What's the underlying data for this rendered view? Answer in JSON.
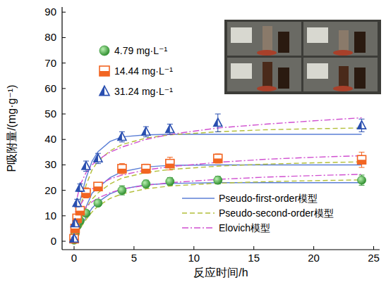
{
  "chart_data": {
    "type": "scatter",
    "x_label": "反应时间/h",
    "y_label": "P吸附量/(mg·g⁻¹)",
    "xlim": [
      -1,
      25.5
    ],
    "ylim": [
      -3.3,
      92
    ],
    "xticks": [
      0,
      5,
      10,
      15,
      20,
      25
    ],
    "yticks": [
      0,
      10,
      20,
      30,
      40,
      50,
      60,
      70,
      80,
      90
    ],
    "legend": "lower right",
    "grid": false,
    "series": [
      {
        "name": "4.79 mg·L⁻¹",
        "type": "scatter",
        "color": "#3a9a3a",
        "marker": "circle",
        "x": [
          0,
          0.083,
          0.25,
          0.5,
          1,
          2,
          4,
          6,
          8,
          12,
          24
        ],
        "values": [
          0.5,
          3,
          6,
          8,
          11,
          15,
          20,
          22.5,
          23.5,
          24,
          24
        ],
        "errors": [
          0.5,
          0.8,
          1,
          1,
          1.2,
          1.2,
          1.8,
          1.5,
          1.5,
          1.5,
          2
        ]
      },
      {
        "name": "14.44 mg·L⁻¹",
        "type": "scatter",
        "color": "#f26522",
        "marker": "square",
        "x": [
          0,
          0.083,
          0.25,
          0.5,
          1,
          2,
          4,
          6,
          8,
          12,
          24
        ],
        "values": [
          1,
          5,
          9,
          12,
          19,
          21.5,
          28.5,
          28.5,
          30.5,
          32.5,
          32
        ],
        "errors": [
          0.6,
          1,
          1.5,
          1.5,
          2,
          1.5,
          2,
          1.8,
          2.5,
          1.8,
          3
        ]
      },
      {
        "name": "31.24 mg·L⁻¹",
        "type": "scatter",
        "color": "#2a4fb0",
        "marker": "triangle",
        "x": [
          0,
          0.083,
          0.25,
          0.5,
          1,
          2,
          4,
          6,
          8,
          12,
          24
        ],
        "values": [
          1,
          7,
          15,
          21,
          29.5,
          32.5,
          41,
          43,
          44,
          46.5,
          45.5
        ],
        "errors": [
          0.6,
          1,
          1.5,
          1.5,
          2,
          2,
          2,
          2,
          2,
          3.5,
          2.5
        ]
      },
      {
        "name": "Pseudo-first-order模型",
        "type": "line",
        "color": "#5b7fd6",
        "line_style": "solid",
        "x": [
          0,
          0.25,
          0.5,
          1,
          1.5,
          2,
          3,
          4,
          6,
          8,
          12,
          16,
          20,
          24
        ],
        "values": [
          0,
          2.9,
          5.4,
          9.4,
          13,
          15.4,
          18.6,
          20.5,
          22.2,
          22.7,
          23,
          23,
          23,
          23
        ]
      },
      {
        "name": "Pseudo-first-order模型",
        "type": "line",
        "color": "#5b7fd6",
        "line_style": "solid",
        "x": [
          0,
          0.25,
          0.5,
          1,
          1.5,
          2,
          3,
          4,
          6,
          8,
          12,
          16,
          20,
          24
        ],
        "values": [
          0,
          4.2,
          7.8,
          13.5,
          18.9,
          21,
          25,
          27.3,
          29.2,
          29.8,
          30,
          30,
          30,
          30
        ]
      },
      {
        "name": "Pseudo-first-order模型",
        "type": "line",
        "color": "#5b7fd6",
        "line_style": "solid",
        "x": [
          0,
          0.25,
          0.5,
          1,
          1.5,
          2,
          3,
          4,
          6,
          8,
          12,
          16,
          20,
          24
        ],
        "values": [
          0,
          8.4,
          15.9,
          24.9,
          31.4,
          35.2,
          39.2,
          41,
          41.8,
          42,
          42,
          42,
          42,
          42
        ]
      },
      {
        "name": "Pseudo-second-order模型",
        "type": "line",
        "color": "#b3bf3a",
        "line_style": "dashed",
        "x": [
          0,
          0.25,
          0.5,
          1,
          1.5,
          2,
          3,
          4,
          6,
          8,
          12,
          16,
          20,
          24
        ],
        "values": [
          0,
          2.5,
          5,
          8.5,
          11.5,
          13.8,
          16.8,
          18.6,
          20.6,
          21.7,
          22.8,
          23.4,
          23.8,
          24.1
        ]
      },
      {
        "name": "Pseudo-second-order模型",
        "type": "line",
        "color": "#b3bf3a",
        "line_style": "dashed",
        "x": [
          0,
          0.25,
          0.5,
          1,
          1.5,
          2,
          3,
          4,
          6,
          8,
          12,
          16,
          20,
          24
        ],
        "values": [
          0,
          4,
          7.5,
          13,
          16.5,
          19,
          22.5,
          24.8,
          27,
          28.2,
          29.5,
          30.3,
          30.8,
          31.2
        ]
      },
      {
        "name": "Pseudo-second-order模型",
        "type": "line",
        "color": "#b3bf3a",
        "line_style": "dashed",
        "x": [
          0,
          0.25,
          0.5,
          1,
          1.5,
          2,
          3,
          4,
          6,
          8,
          12,
          16,
          20,
          24
        ],
        "values": [
          0,
          7,
          13,
          22,
          28,
          31.5,
          35.5,
          38,
          40.5,
          41.8,
          43,
          43.8,
          44.2,
          44.5
        ]
      },
      {
        "name": "Elovich模型",
        "type": "line",
        "color": "#d04fd0",
        "line_style": "dashdot",
        "x": [
          0.05,
          0.25,
          0.5,
          1,
          1.5,
          2,
          3,
          4,
          6,
          8,
          12,
          16,
          20,
          24
        ],
        "values": [
          3,
          7,
          10,
          13.5,
          15.5,
          17,
          19,
          20.5,
          22,
          23,
          24.3,
          25.2,
          25.8,
          26.3
        ]
      },
      {
        "name": "Elovich模型",
        "type": "line",
        "color": "#d04fd0",
        "line_style": "dashdot",
        "x": [
          0.05,
          0.25,
          0.5,
          1,
          1.5,
          2,
          3,
          4,
          6,
          8,
          12,
          16,
          20,
          24
        ],
        "values": [
          5,
          10,
          14,
          18,
          20.5,
          22,
          24.5,
          26,
          28,
          29.3,
          31,
          32.2,
          33,
          33.6
        ]
      },
      {
        "name": "Elovich模型",
        "type": "line",
        "color": "#d04fd0",
        "line_style": "dashdot",
        "x": [
          0.05,
          0.25,
          0.5,
          1,
          1.5,
          2,
          3,
          4,
          6,
          8,
          12,
          16,
          20,
          24
        ],
        "values": [
          8,
          17,
          22,
          27,
          30,
          32,
          35,
          37,
          40,
          42,
          44.5,
          46,
          47.3,
          48.5
        ]
      }
    ]
  }
}
